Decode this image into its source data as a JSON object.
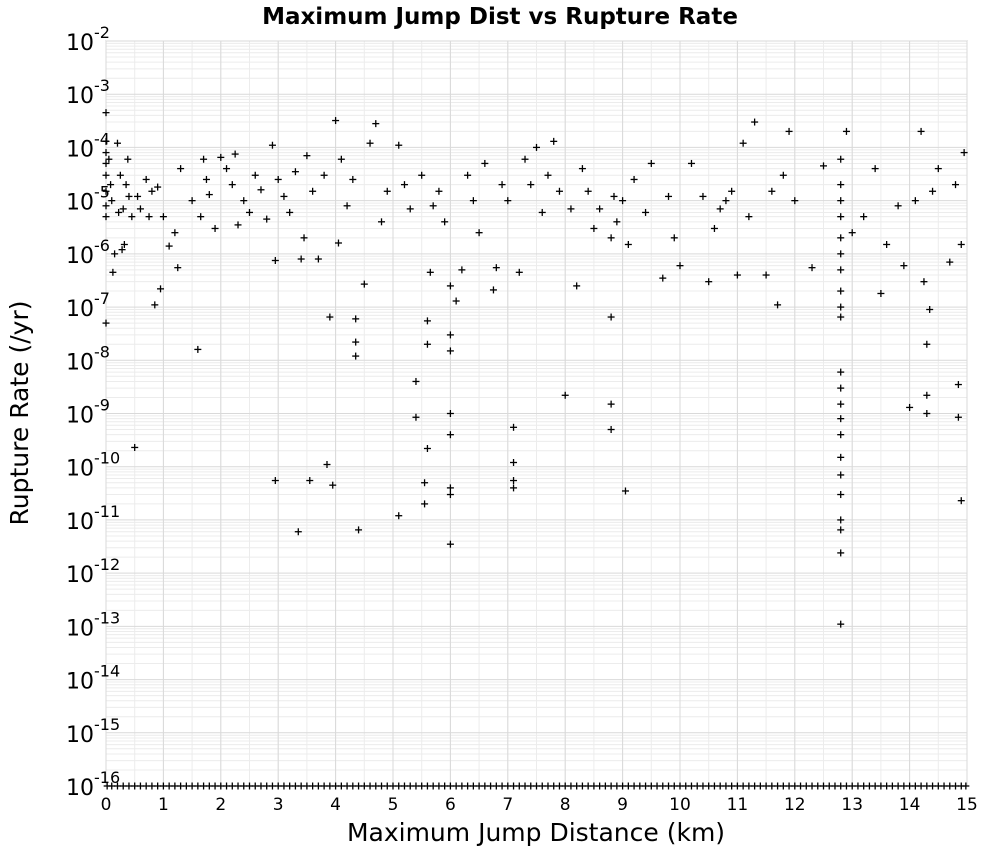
{
  "chart_data": {
    "type": "scatter",
    "title": "Maximum Jump Dist vs Rupture Rate",
    "xlabel": "Maximum Jump Distance (km)",
    "ylabel": "Rupture Rate (/yr)",
    "xlim": [
      0,
      15
    ],
    "ylim": [
      1e-16,
      0.01
    ],
    "yscale": "log",
    "grid": true,
    "marker": "plus",
    "marker_color": "#000000",
    "x_ticks": [
      "0",
      "1",
      "2",
      "3",
      "4",
      "5",
      "6",
      "7",
      "8",
      "9",
      "10",
      "11",
      "12",
      "13",
      "14",
      "15"
    ],
    "y_ticks": [
      {
        "base": "10",
        "exp": "-16"
      },
      {
        "base": "10",
        "exp": "-15"
      },
      {
        "base": "10",
        "exp": "-14"
      },
      {
        "base": "10",
        "exp": "-13"
      },
      {
        "base": "10",
        "exp": "-12"
      },
      {
        "base": "10",
        "exp": "-11"
      },
      {
        "base": "10",
        "exp": "-10"
      },
      {
        "base": "10",
        "exp": "-9"
      },
      {
        "base": "10",
        "exp": "-8"
      },
      {
        "base": "10",
        "exp": "-7"
      },
      {
        "base": "10",
        "exp": "-6"
      },
      {
        "base": "10",
        "exp": "-5"
      },
      {
        "base": "10",
        "exp": "-4"
      },
      {
        "base": "10",
        "exp": "-3"
      },
      {
        "base": "10",
        "exp": "-2"
      }
    ],
    "series": [
      {
        "points": [
          [
            0.0,
            0.00045
          ],
          [
            0.0,
            0.00013
          ],
          [
            0.0,
            8e-05
          ],
          [
            0.0,
            5e-05
          ],
          [
            0.0,
            3e-05
          ],
          [
            0.0,
            1.5e-05
          ],
          [
            0.0,
            8e-06
          ],
          [
            0.0,
            5e-06
          ],
          [
            0.0,
            5e-08
          ],
          [
            0.05,
            6e-05
          ],
          [
            0.08,
            2e-05
          ],
          [
            0.1,
            1e-05
          ],
          [
            0.12,
            4.5e-07
          ],
          [
            0.15,
            1e-06
          ],
          [
            0.2,
            0.00012
          ],
          [
            0.22,
            6e-06
          ],
          [
            0.25,
            3e-05
          ],
          [
            0.28,
            1.2e-06
          ],
          [
            0.3,
            7e-06
          ],
          [
            0.32,
            1.5e-06
          ],
          [
            0.35,
            2e-05
          ],
          [
            0.38,
            6e-05
          ],
          [
            0.4,
            1.2e-05
          ],
          [
            0.45,
            5e-06
          ],
          [
            0.5,
            2.3e-10
          ],
          [
            0.55,
            1.2e-05
          ],
          [
            0.6,
            7e-06
          ],
          [
            0.7,
            2.5e-05
          ],
          [
            0.75,
            5e-06
          ],
          [
            0.8,
            1.5e-05
          ],
          [
            0.85,
            1.1e-07
          ],
          [
            0.9,
            1.8e-05
          ],
          [
            0.95,
            2.2e-07
          ],
          [
            1.0,
            5e-06
          ],
          [
            1.1,
            1.4e-06
          ],
          [
            1.2,
            2.5e-06
          ],
          [
            1.25,
            5.5e-07
          ],
          [
            1.3,
            4e-05
          ],
          [
            1.5,
            1e-05
          ],
          [
            1.6,
            1.6e-08
          ],
          [
            1.65,
            5e-06
          ],
          [
            1.7,
            6e-05
          ],
          [
            1.75,
            2.5e-05
          ],
          [
            1.8,
            1.3e-05
          ],
          [
            1.9,
            3e-06
          ],
          [
            2.0,
            6.5e-05
          ],
          [
            2.1,
            4e-05
          ],
          [
            2.2,
            2e-05
          ],
          [
            2.25,
            7.5e-05
          ],
          [
            2.3,
            3.5e-06
          ],
          [
            2.4,
            1e-05
          ],
          [
            2.5,
            6e-06
          ],
          [
            2.6,
            3e-05
          ],
          [
            2.7,
            1.6e-05
          ],
          [
            2.8,
            4.5e-06
          ],
          [
            2.9,
            0.00011
          ],
          [
            2.95,
            7.5e-07
          ],
          [
            2.95,
            5.5e-11
          ],
          [
            3.0,
            2.5e-05
          ],
          [
            3.1,
            1.2e-05
          ],
          [
            3.2,
            6e-06
          ],
          [
            3.3,
            3.5e-05
          ],
          [
            3.35,
            6e-12
          ],
          [
            3.4,
            8e-07
          ],
          [
            3.45,
            2e-06
          ],
          [
            3.5,
            7e-05
          ],
          [
            3.55,
            5.5e-11
          ],
          [
            3.6,
            1.5e-05
          ],
          [
            3.7,
            8e-07
          ],
          [
            3.8,
            3e-05
          ],
          [
            3.85,
            1.1e-10
          ],
          [
            3.9,
            6.5e-08
          ],
          [
            3.95,
            4.5e-11
          ],
          [
            4.0,
            0.00032
          ],
          [
            4.05,
            1.6e-06
          ],
          [
            4.1,
            6e-05
          ],
          [
            4.2,
            8e-06
          ],
          [
            4.3,
            2.5e-05
          ],
          [
            4.35,
            6e-08
          ],
          [
            4.35,
            2.2e-08
          ],
          [
            4.35,
            1.2e-08
          ],
          [
            4.4,
            6.5e-12
          ],
          [
            4.5,
            2.7e-07
          ],
          [
            4.6,
            0.00012
          ],
          [
            4.7,
            0.00028
          ],
          [
            4.8,
            4e-06
          ],
          [
            4.9,
            1.5e-05
          ],
          [
            5.1,
            0.00011
          ],
          [
            5.1,
            1.2e-11
          ],
          [
            5.2,
            2e-05
          ],
          [
            5.3,
            7e-06
          ],
          [
            5.4,
            4e-09
          ],
          [
            5.4,
            8.5e-10
          ],
          [
            5.5,
            3e-05
          ],
          [
            5.55,
            5e-11
          ],
          [
            5.55,
            2e-11
          ],
          [
            5.6,
            5.5e-08
          ],
          [
            5.6,
            2e-08
          ],
          [
            5.6,
            2.2e-10
          ],
          [
            5.65,
            4.5e-07
          ],
          [
            5.7,
            8e-06
          ],
          [
            5.8,
            1.5e-05
          ],
          [
            5.9,
            4e-06
          ],
          [
            6.0,
            3e-08
          ],
          [
            6.0,
            1.5e-08
          ],
          [
            6.0,
            1e-09
          ],
          [
            6.0,
            4e-10
          ],
          [
            6.0,
            4e-11
          ],
          [
            6.0,
            3e-11
          ],
          [
            6.0,
            3.5e-12
          ],
          [
            6.0,
            2.5e-07
          ],
          [
            6.1,
            1.3e-07
          ],
          [
            6.2,
            5e-07
          ],
          [
            6.3,
            3e-05
          ],
          [
            6.4,
            1e-05
          ],
          [
            6.5,
            2.5e-06
          ],
          [
            6.6,
            5e-05
          ],
          [
            6.75,
            2.1e-07
          ],
          [
            6.8,
            5.5e-07
          ],
          [
            6.9,
            2e-05
          ],
          [
            7.0,
            1e-05
          ],
          [
            7.1,
            5.5e-10
          ],
          [
            7.1,
            1.2e-10
          ],
          [
            7.1,
            5.5e-11
          ],
          [
            7.1,
            4e-11
          ],
          [
            7.2,
            4.5e-07
          ],
          [
            7.3,
            6e-05
          ],
          [
            7.4,
            2e-05
          ],
          [
            7.5,
            0.0001
          ],
          [
            7.6,
            6e-06
          ],
          [
            7.7,
            3e-05
          ],
          [
            7.8,
            0.00013
          ],
          [
            7.9,
            1.5e-05
          ],
          [
            8.0,
            2.2e-09
          ],
          [
            8.1,
            7e-06
          ],
          [
            8.2,
            2.5e-07
          ],
          [
            8.3,
            4e-05
          ],
          [
            8.4,
            1.5e-05
          ],
          [
            8.5,
            3e-06
          ],
          [
            8.6,
            7e-06
          ],
          [
            8.8,
            6.5e-08
          ],
          [
            8.8,
            1.5e-09
          ],
          [
            8.8,
            5e-10
          ],
          [
            8.8,
            2e-06
          ],
          [
            8.85,
            1.2e-05
          ],
          [
            8.9,
            4e-06
          ],
          [
            9.0,
            1e-05
          ],
          [
            9.05,
            3.5e-11
          ],
          [
            9.1,
            1.5e-06
          ],
          [
            9.2,
            2.5e-05
          ],
          [
            9.4,
            6e-06
          ],
          [
            9.5,
            5e-05
          ],
          [
            9.7,
            3.5e-07
          ],
          [
            9.8,
            1.2e-05
          ],
          [
            9.9,
            2e-06
          ],
          [
            10.0,
            6e-07
          ],
          [
            10.2,
            5e-05
          ],
          [
            10.4,
            1.2e-05
          ],
          [
            10.5,
            3e-07
          ],
          [
            10.6,
            3e-06
          ],
          [
            10.7,
            7e-06
          ],
          [
            10.8,
            1e-05
          ],
          [
            10.9,
            1.5e-05
          ],
          [
            11.0,
            4e-07
          ],
          [
            11.1,
            0.00012
          ],
          [
            11.2,
            5e-06
          ],
          [
            11.3,
            0.0003
          ],
          [
            11.5,
            4e-07
          ],
          [
            11.6,
            1.5e-05
          ],
          [
            11.7,
            1.1e-07
          ],
          [
            11.8,
            3e-05
          ],
          [
            11.9,
            0.0002
          ],
          [
            12.0,
            1e-05
          ],
          [
            12.3,
            5.5e-07
          ],
          [
            12.5,
            4.5e-05
          ],
          [
            12.8,
            6e-05
          ],
          [
            12.8,
            2e-05
          ],
          [
            12.8,
            1e-05
          ],
          [
            12.8,
            5e-06
          ],
          [
            12.8,
            2e-06
          ],
          [
            12.8,
            1e-06
          ],
          [
            12.8,
            5e-07
          ],
          [
            12.8,
            2e-07
          ],
          [
            12.8,
            1e-07
          ],
          [
            12.8,
            6.5e-08
          ],
          [
            12.8,
            6e-09
          ],
          [
            12.8,
            3e-09
          ],
          [
            12.8,
            1.5e-09
          ],
          [
            12.8,
            8e-10
          ],
          [
            12.8,
            4e-10
          ],
          [
            12.8,
            1.5e-10
          ],
          [
            12.8,
            7e-11
          ],
          [
            12.8,
            3e-11
          ],
          [
            12.8,
            1e-11
          ],
          [
            12.8,
            6.5e-12
          ],
          [
            12.8,
            2.4e-12
          ],
          [
            12.8,
            1.1e-13
          ],
          [
            12.9,
            0.0002
          ],
          [
            13.0,
            2.5e-06
          ],
          [
            13.2,
            5e-06
          ],
          [
            13.4,
            4e-05
          ],
          [
            13.5,
            1.8e-07
          ],
          [
            13.6,
            1.5e-06
          ],
          [
            13.8,
            8e-06
          ],
          [
            13.9,
            6e-07
          ],
          [
            14.0,
            1.3e-09
          ],
          [
            14.1,
            1e-05
          ],
          [
            14.2,
            0.0002
          ],
          [
            14.25,
            3e-07
          ],
          [
            14.3,
            2e-08
          ],
          [
            14.3,
            2.2e-09
          ],
          [
            14.3,
            1e-09
          ],
          [
            14.35,
            9e-08
          ],
          [
            14.4,
            1.5e-05
          ],
          [
            14.5,
            4e-05
          ],
          [
            14.7,
            7e-07
          ],
          [
            14.8,
            2e-05
          ],
          [
            14.85,
            3.5e-09
          ],
          [
            14.85,
            8.5e-10
          ],
          [
            14.9,
            2.3e-11
          ],
          [
            14.9,
            1.5e-06
          ],
          [
            14.95,
            8e-05
          ]
        ]
      }
    ],
    "floor_band": {
      "y": 1e-16,
      "x": [
        0.02,
        0.1,
        0.2,
        0.3,
        0.4,
        0.5,
        0.6,
        0.7,
        0.8,
        0.9,
        1.0,
        1.1,
        1.2,
        1.3,
        1.4,
        1.5,
        1.6,
        1.7,
        1.8,
        1.9,
        2.0,
        2.1,
        2.2,
        2.3,
        2.4,
        2.5,
        2.6,
        2.7,
        2.8,
        2.9,
        3.0,
        3.1,
        3.2,
        3.3,
        3.4,
        3.5,
        3.6,
        3.7,
        3.8,
        3.9,
        4.0,
        4.1,
        4.2,
        4.3,
        4.4,
        4.5,
        4.6,
        4.7,
        4.8,
        4.9,
        5.0,
        5.1,
        5.2,
        5.3,
        5.4,
        5.5,
        5.6,
        5.7,
        5.8,
        5.9,
        6.0,
        6.1,
        6.2,
        6.3,
        6.4,
        6.5,
        6.6,
        6.7,
        6.8,
        6.9,
        7.0,
        7.1,
        7.2,
        7.3,
        7.4,
        7.5,
        7.6,
        7.7,
        7.8,
        7.9,
        8.0,
        8.1,
        8.2,
        8.3,
        8.4,
        8.5,
        8.6,
        8.7,
        8.8,
        8.9,
        9.0,
        9.1,
        9.2,
        9.3,
        9.4,
        9.5,
        9.6,
        9.7,
        9.8,
        9.9,
        10.0,
        10.1,
        10.2,
        10.3,
        10.4,
        10.5,
        10.6,
        10.7,
        10.8,
        10.9,
        11.0,
        11.1,
        11.2,
        11.3,
        11.4,
        11.5,
        11.6,
        11.7,
        11.8,
        11.9,
        12.0,
        12.1,
        12.2,
        12.3,
        12.4,
        12.5,
        12.6,
        12.7,
        12.8,
        12.9,
        13.0,
        13.1,
        13.2,
        13.3,
        13.4,
        13.5,
        13.6,
        13.7,
        13.8,
        13.9,
        14.0,
        14.1,
        14.2,
        14.3,
        14.4,
        14.5,
        14.6,
        14.7,
        14.8,
        14.9,
        14.98
      ]
    }
  }
}
